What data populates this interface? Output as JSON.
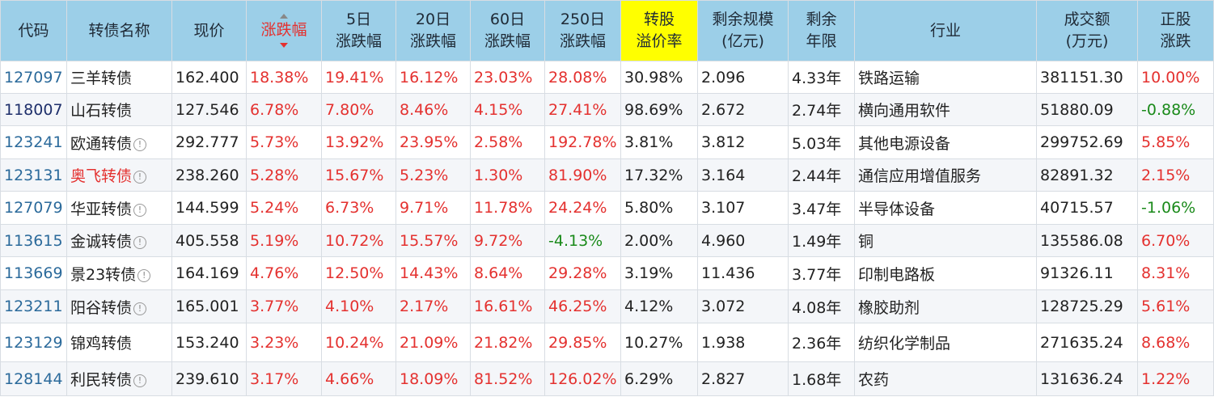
{
  "headers": {
    "code": "代码",
    "name": "转债名称",
    "price": "现价",
    "change": "涨跌幅",
    "chg5": [
      "5日",
      "涨跌幅"
    ],
    "chg20": [
      "20日",
      "涨跌幅"
    ],
    "chg60": [
      "60日",
      "涨跌幅"
    ],
    "chg250": [
      "250日",
      "涨跌幅"
    ],
    "premium": [
      "转股",
      "溢价率"
    ],
    "remain": [
      "剩余规模",
      "(亿元)"
    ],
    "years": [
      "剩余",
      "年限"
    ],
    "industry": "行业",
    "volume": [
      "成交额",
      "(万元)"
    ],
    "stock": [
      "正股",
      "涨跌"
    ]
  },
  "rows": [
    {
      "code": "127097",
      "name": "三羊转债",
      "info": false,
      "price": "162.400",
      "change": "18.38%",
      "c5": "19.41%",
      "c20": "16.12%",
      "c60": "23.03%",
      "c250": "28.08%",
      "premium": "30.98%",
      "remain": "2.096",
      "years": "4.33年",
      "industry": "铁路运输",
      "volume": "381151.30",
      "stock": "10.00%"
    },
    {
      "code": "118007",
      "name": "山石转债",
      "info": false,
      "price": "127.546",
      "change": "6.78%",
      "c5": "7.80%",
      "c20": "8.46%",
      "c60": "4.15%",
      "c250": "27.41%",
      "premium": "98.69%",
      "remain": "2.672",
      "years": "2.74年",
      "industry": "横向通用软件",
      "volume": "51880.09",
      "stock": "-0.88%"
    },
    {
      "code": "123241",
      "name": "欧通转债",
      "info": true,
      "price": "292.777",
      "change": "5.73%",
      "c5": "13.92%",
      "c20": "23.95%",
      "c60": "2.58%",
      "c250": "192.78%",
      "premium": "3.81%",
      "remain": "3.812",
      "years": "5.03年",
      "industry": "其他电源设备",
      "volume": "299752.69",
      "stock": "5.85%"
    },
    {
      "code": "123131",
      "name": "奥飞转债",
      "info": true,
      "price": "238.260",
      "change": "5.28%",
      "c5": "15.67%",
      "c20": "5.23%",
      "c60": "1.30%",
      "c250": "81.90%",
      "premium": "17.32%",
      "remain": "3.164",
      "years": "2.44年",
      "industry": "通信应用增值服务",
      "volume": "82891.32",
      "stock": "2.15%"
    },
    {
      "code": "127079",
      "name": "华亚转债",
      "info": true,
      "price": "144.599",
      "change": "5.24%",
      "c5": "6.73%",
      "c20": "9.71%",
      "c60": "11.78%",
      "c250": "24.24%",
      "premium": "5.80%",
      "remain": "3.107",
      "years": "3.47年",
      "industry": "半导体设备",
      "volume": "40715.57",
      "stock": "-1.06%"
    },
    {
      "code": "113615",
      "name": "金诚转债",
      "info": true,
      "price": "405.558",
      "change": "5.19%",
      "c5": "10.72%",
      "c20": "15.57%",
      "c60": "9.72%",
      "c250": "-4.13%",
      "premium": "2.00%",
      "remain": "4.960",
      "years": "1.49年",
      "industry": "铜",
      "volume": "135586.08",
      "stock": "6.70%"
    },
    {
      "code": "113669",
      "name": "景23转债",
      "info": true,
      "price": "164.169",
      "change": "4.76%",
      "c5": "12.50%",
      "c20": "14.43%",
      "c60": "8.64%",
      "c250": "29.28%",
      "premium": "3.19%",
      "remain": "11.436",
      "years": "3.77年",
      "industry": "印制电路板",
      "volume": "91326.11",
      "stock": "8.31%"
    },
    {
      "code": "123211",
      "name": "阳谷转债",
      "info": true,
      "price": "165.001",
      "change": "3.77%",
      "c5": "4.10%",
      "c20": "2.17%",
      "c60": "16.61%",
      "c250": "46.25%",
      "premium": "4.12%",
      "remain": "3.072",
      "years": "4.08年",
      "industry": "橡胶助剂",
      "volume": "128725.29",
      "stock": "5.61%"
    },
    {
      "code": "123129",
      "name": "锦鸡转债",
      "info": false,
      "price": "153.240",
      "change": "3.23%",
      "c5": "10.24%",
      "c20": "21.09%",
      "c60": "21.82%",
      "c250": "29.85%",
      "premium": "10.27%",
      "remain": "1.938",
      "years": "2.36年",
      "industry": "纺织化学制品",
      "volume": "271635.24",
      "stock": "8.68%"
    },
    {
      "code": "128144",
      "name": "利民转债",
      "info": true,
      "price": "239.610",
      "change": "3.17%",
      "c5": "4.66%",
      "c20": "18.09%",
      "c60": "81.52%",
      "c250": "126.02%",
      "premium": "6.29%",
      "remain": "2.827",
      "years": "1.68年",
      "industry": "农药",
      "volume": "131636.24",
      "stock": "1.22%"
    }
  ],
  "styles": {
    "header_bg": "#9ccfe8",
    "highlight_bg": "#ffff00",
    "positive_color": "#e4312f",
    "negative_color": "#1a8a1a",
    "code_color": "#2b6a9b"
  }
}
